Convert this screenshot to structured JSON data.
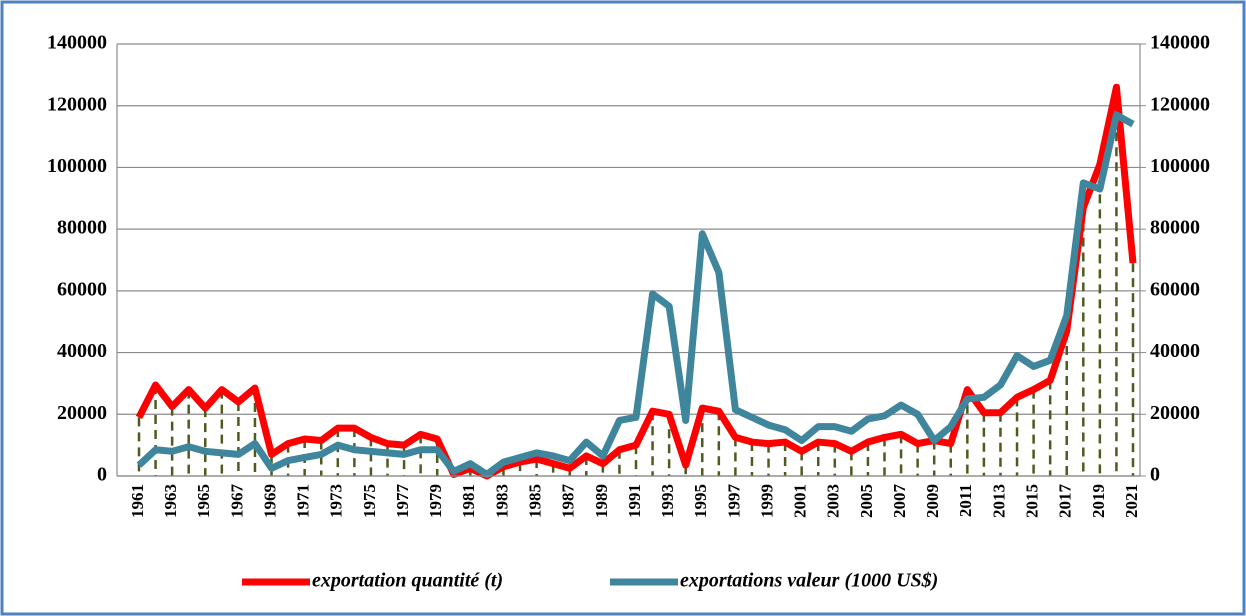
{
  "chart_data": {
    "type": "line",
    "categories": [
      "1961",
      null,
      "1963",
      null,
      "1965",
      null,
      "1967",
      null,
      "1969",
      null,
      "1971",
      null,
      "1973",
      null,
      "1975",
      null,
      "1977",
      null,
      "1979",
      null,
      "1981",
      null,
      "1983",
      null,
      "1985",
      null,
      "1987",
      null,
      "1989",
      null,
      "1991",
      null,
      "1993",
      null,
      "1995",
      null,
      "1997",
      null,
      "1999",
      null,
      "2001",
      null,
      "2003",
      null,
      "2005",
      null,
      "2007",
      null,
      "2009",
      null,
      "2011",
      null,
      "2013",
      null,
      "2015",
      null,
      "2017",
      null,
      "2019",
      null,
      "2021"
    ],
    "series": [
      {
        "name": "exportation quantité (t)",
        "color": "#ff0000",
        "values": [
          19000,
          29500,
          22500,
          28000,
          22000,
          28000,
          24000,
          28500,
          7000,
          10500,
          12000,
          11500,
          15500,
          15500,
          12500,
          10500,
          10000,
          13500,
          12000,
          500,
          2500,
          0,
          3000,
          4500,
          5500,
          4000,
          2500,
          6500,
          4000,
          8500,
          10000,
          21000,
          20000,
          3500,
          22000,
          21000,
          12500,
          11000,
          10500,
          11000,
          8000,
          11000,
          10500,
          8000,
          11000,
          12500,
          13500,
          10500,
          11500,
          10500,
          28000,
          20500,
          20500,
          25500,
          28000,
          31000,
          47000,
          87000,
          101000,
          126000,
          69000
        ]
      },
      {
        "name": "exportations valeur (1000 US$)",
        "color": "#3f869c",
        "axis": "y2",
        "values": [
          3500,
          8500,
          8000,
          9500,
          8000,
          7500,
          7000,
          10500,
          2500,
          5000,
          6000,
          7000,
          10000,
          8500,
          8000,
          7500,
          7000,
          8500,
          8500,
          1500,
          4000,
          500,
          4500,
          6000,
          7500,
          6500,
          5000,
          11000,
          6500,
          18000,
          19000,
          59000,
          55000,
          18000,
          78500,
          66000,
          21500,
          19000,
          16500,
          15000,
          11500,
          16000,
          16000,
          14500,
          18500,
          19500,
          23000,
          20000,
          11500,
          16000,
          25000,
          25500,
          29500,
          39000,
          35500,
          37500,
          52000,
          95000,
          93000,
          117000,
          114000
        ]
      }
    ],
    "drop_lines_color": "#4f5a1e",
    "ylim": [
      0,
      140000
    ],
    "yticks": [
      0,
      20000,
      40000,
      60000,
      80000,
      100000,
      120000,
      140000
    ],
    "y2lim": [
      0,
      140000
    ],
    "y2ticks": [
      0,
      20000,
      40000,
      60000,
      80000,
      100000,
      120000,
      140000
    ],
    "grid": true
  }
}
